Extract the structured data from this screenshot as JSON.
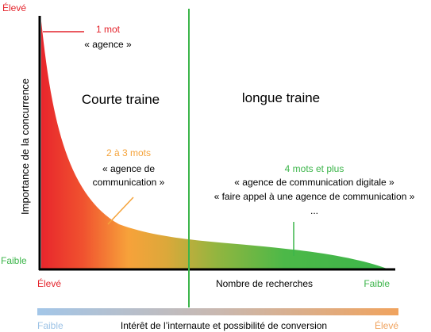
{
  "axes": {
    "y_label": "Importance de la concurrence",
    "y_top": "Élevé",
    "y_bottom": "Faible",
    "x_label": "Nombre de recherches",
    "x_left": "Élevé",
    "x_right": "Faible"
  },
  "regions": {
    "short_tail": "Courte traine",
    "long_tail": "longue traine"
  },
  "annotations": {
    "one_word": {
      "title": "1 mot",
      "example": "« agence »"
    },
    "two_three_words": {
      "title": "2 à 3 mots",
      "example_line1": "« agence de",
      "example_line2": "communication »"
    },
    "four_plus_words": {
      "title": "4 mots et plus",
      "example_line1": "« agence de communication digitale »",
      "example_line2": "« faire appel à une agence de communication »",
      "ellipsis": "..."
    }
  },
  "bottom_scale": {
    "label": "Intérêt de l’internaute et possibilité de conversion",
    "left": "Faible",
    "right": "Élevé"
  },
  "colors": {
    "red": "#e4232b",
    "orange": "#f5a33a",
    "green": "#3cb54a",
    "scale_blue": "#9dc3e6",
    "scale_orange": "#f0a35e",
    "axis": "#000000"
  }
}
